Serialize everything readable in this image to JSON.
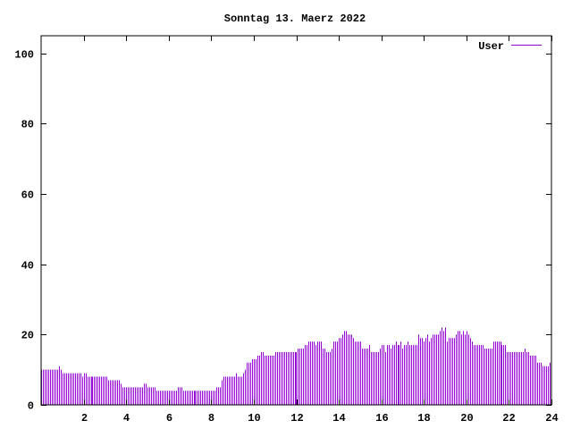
{
  "chart_data": {
    "type": "bar",
    "style": "impulses",
    "title": "Sonntag 13. Maerz 2022",
    "xlabel": "",
    "ylabel": "",
    "xlim": [
      0,
      24
    ],
    "ylim": [
      0,
      105
    ],
    "x_ticks": [
      2,
      4,
      6,
      8,
      10,
      12,
      14,
      16,
      18,
      20,
      22,
      24
    ],
    "x_tick_labels": [
      "2",
      "4",
      "6",
      "8",
      "10",
      "12",
      "14",
      "16",
      "18",
      "20",
      "22",
      "24"
    ],
    "y_ticks": [
      0,
      20,
      40,
      60,
      80,
      100
    ],
    "y_tick_labels": [
      "0",
      "20",
      "40",
      "60",
      "80",
      "100"
    ],
    "grid": false,
    "legend_position": "top-right",
    "x_step_hours": 0.0833333,
    "series": [
      {
        "name": "User",
        "color": "#9400d3",
        "values": [
          10,
          10,
          10,
          10,
          10,
          10,
          10,
          10,
          10,
          10,
          11,
          10,
          9,
          9,
          9,
          9,
          9,
          9,
          9,
          9,
          9,
          9,
          9,
          8,
          9,
          9,
          8,
          8,
          8,
          8,
          8,
          8,
          8,
          8,
          8,
          8,
          8,
          8,
          7,
          7,
          7,
          7,
          7,
          7,
          7,
          6,
          5,
          5,
          5,
          5,
          5,
          5,
          5,
          5,
          5,
          5,
          5,
          5,
          6,
          6,
          5,
          5,
          5,
          5,
          5,
          4,
          4,
          4,
          4,
          4,
          4,
          4,
          4,
          4,
          4,
          4,
          4,
          5,
          5,
          5,
          4,
          4,
          4,
          4,
          4,
          4,
          4,
          4,
          4,
          4,
          4,
          4,
          4,
          4,
          4,
          4,
          4,
          4,
          4,
          5,
          5,
          5,
          7,
          8,
          8,
          8,
          8,
          8,
          8,
          8,
          9,
          8,
          8,
          8,
          9,
          10,
          12,
          12,
          12,
          13,
          13,
          13,
          14,
          14,
          15,
          15,
          14,
          14,
          14,
          14,
          14,
          14,
          15,
          15,
          15,
          15,
          15,
          15,
          15,
          15,
          15,
          15,
          15,
          15,
          15,
          16,
          16,
          16,
          16,
          17,
          17,
          18,
          18,
          18,
          18,
          17,
          18,
          18,
          18,
          16,
          16,
          15,
          15,
          15,
          16,
          18,
          18,
          18,
          19,
          19,
          20,
          21,
          21,
          20,
          20,
          20,
          19,
          18,
          18,
          18,
          18,
          16,
          16,
          16,
          16,
          17,
          15,
          15,
          15,
          15,
          15,
          16,
          17,
          17,
          15,
          17,
          17,
          16,
          17,
          17,
          18,
          17,
          17,
          18,
          16,
          17,
          17,
          18,
          17,
          17,
          17,
          17,
          17,
          20,
          19,
          19,
          18,
          19,
          20,
          18,
          19,
          20,
          20,
          20,
          20,
          21,
          22,
          21,
          22,
          18,
          19,
          19,
          19,
          19,
          20,
          21,
          21,
          20,
          21,
          20,
          21,
          20,
          19,
          18,
          17,
          17,
          17,
          17,
          17,
          17,
          16,
          16,
          16,
          16,
          16,
          18,
          18,
          18,
          18,
          18,
          17,
          17,
          17,
          15,
          15,
          15,
          15,
          15,
          15,
          15,
          15,
          15,
          15,
          16,
          15,
          15,
          14,
          14,
          14,
          14,
          12,
          12,
          12,
          11,
          11,
          11,
          11,
          12
        ]
      }
    ]
  }
}
